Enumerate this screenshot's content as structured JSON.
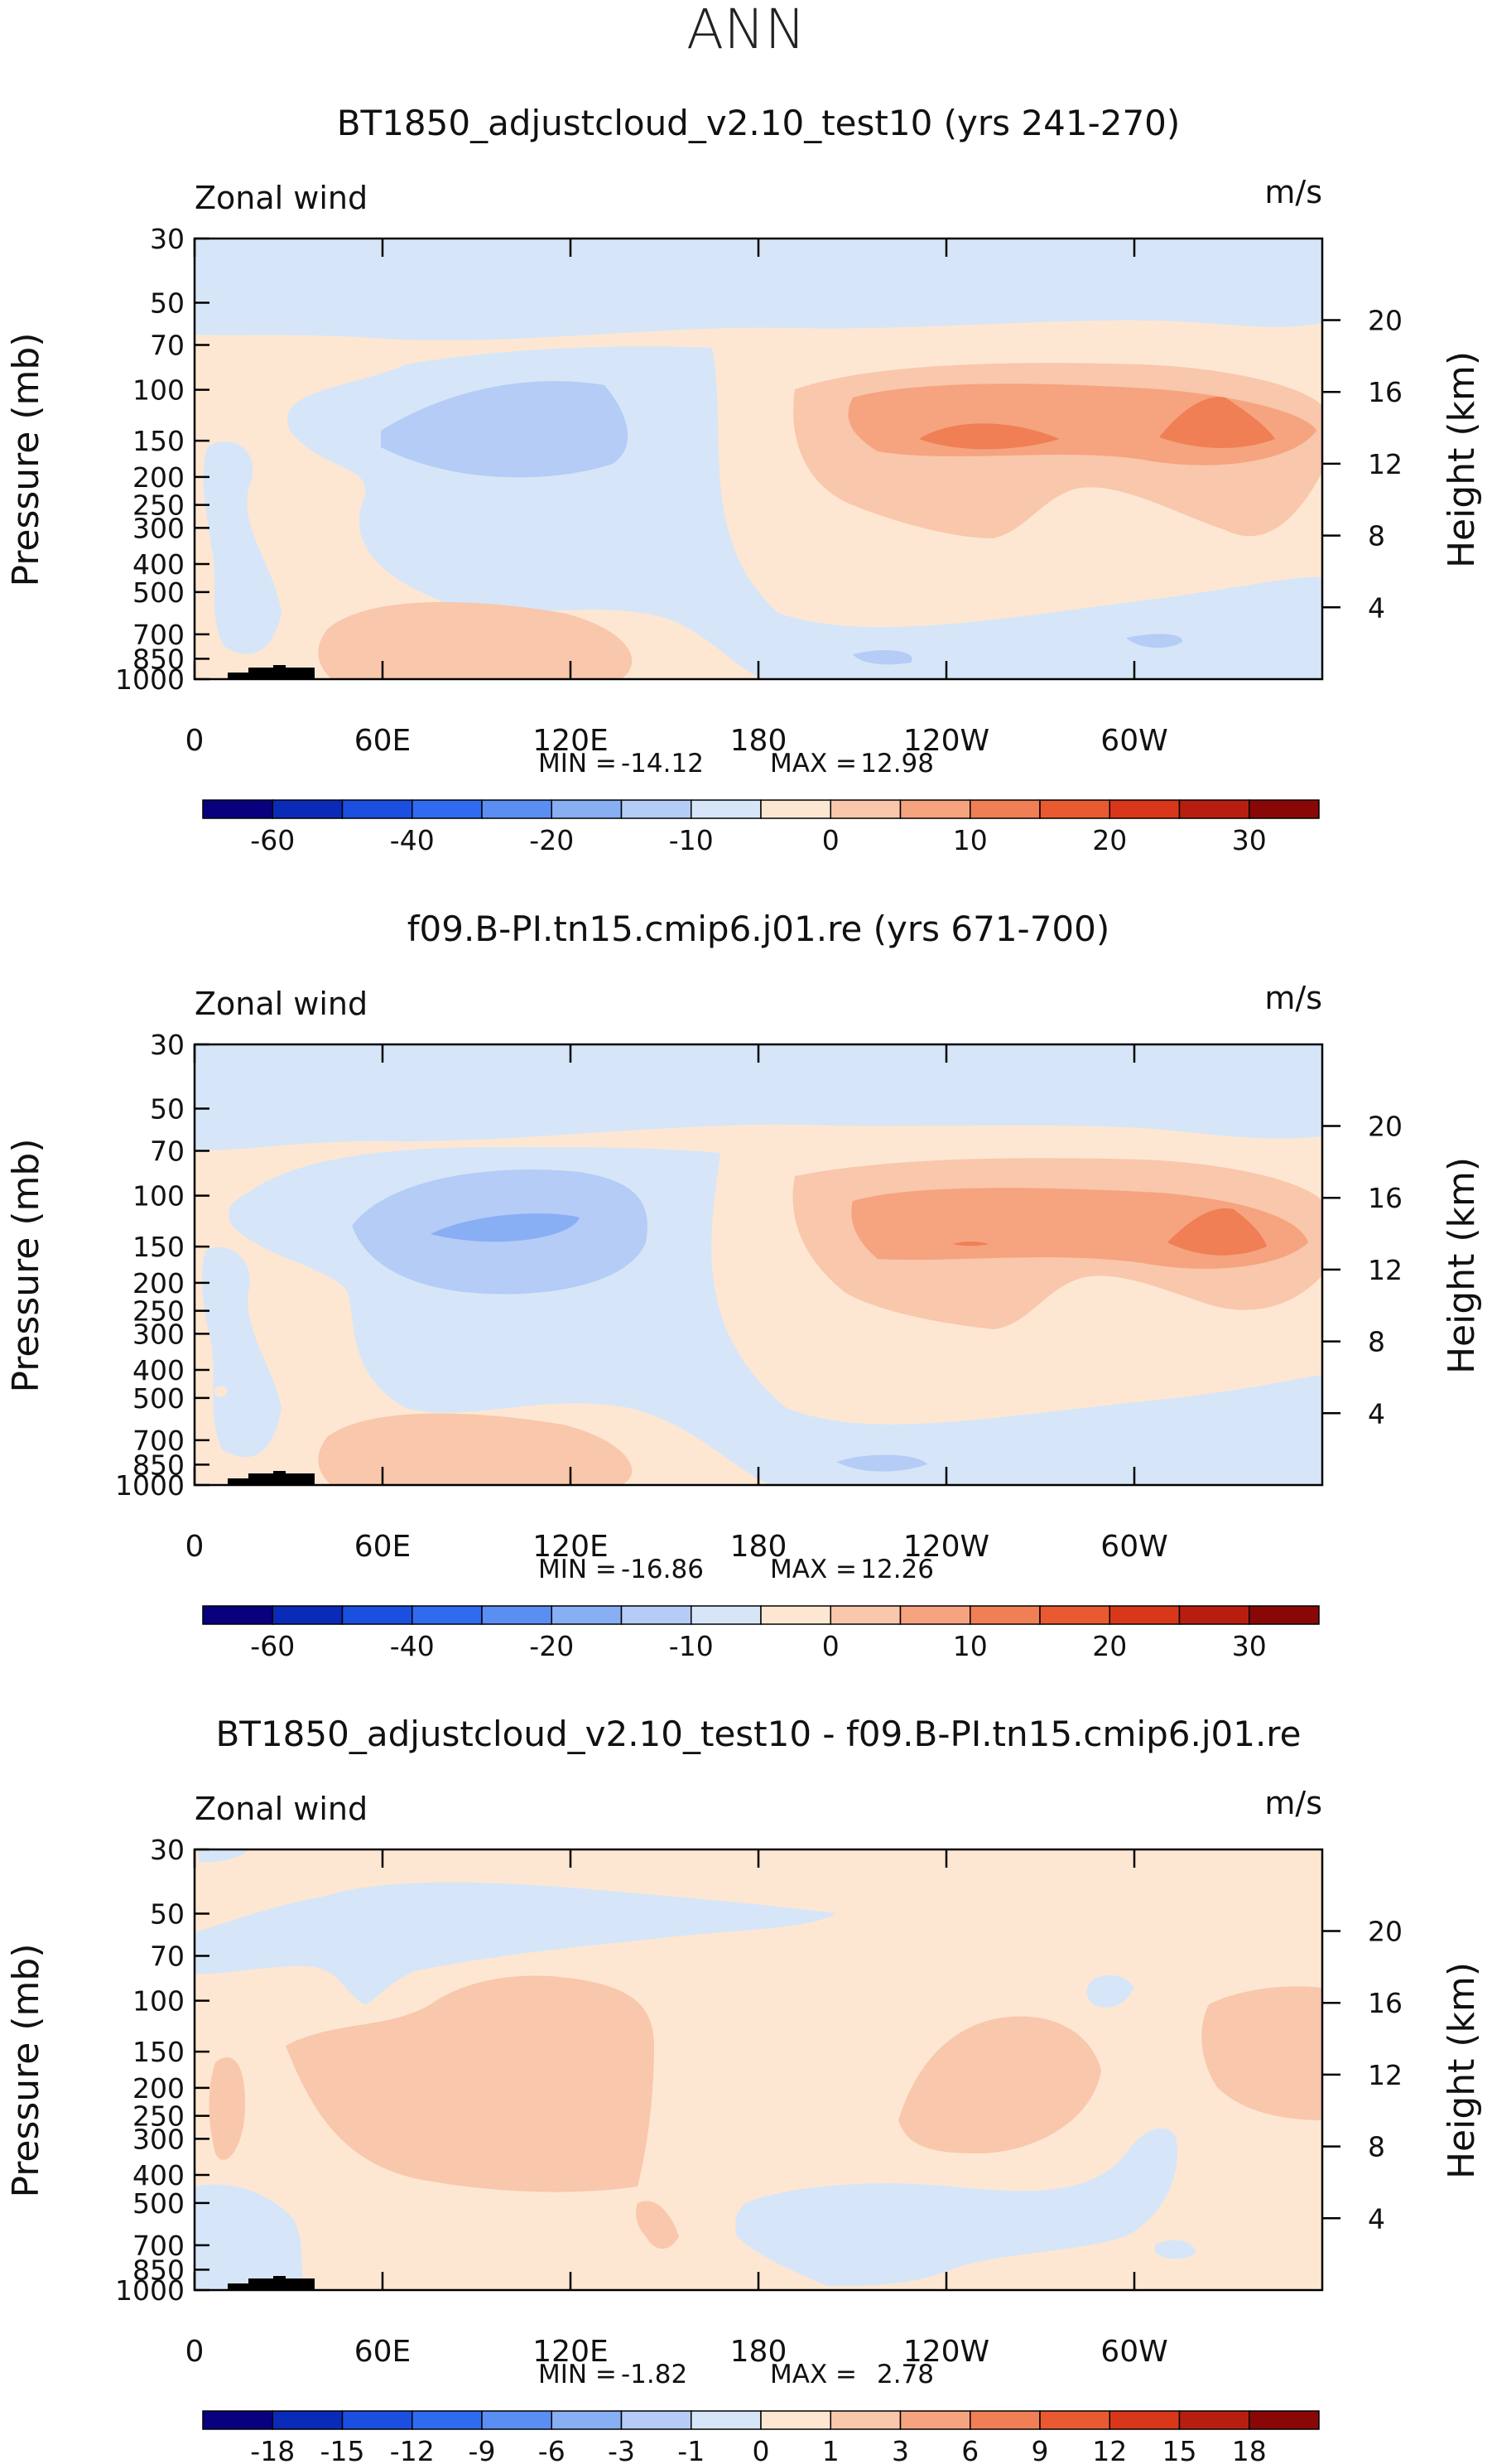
{
  "header": {
    "season": "ANN"
  },
  "chart_data": [
    {
      "type": "contour",
      "title": "BT1850_adjustcloud_v2.10_test10 (yrs 241-270)",
      "variable": "Zonal wind",
      "units": "m/s",
      "xlabel": "",
      "ylabel": "Pressure (mb)",
      "ylabel_right": "Height (km)",
      "x_ticks": [
        "0",
        "60E",
        "120E",
        "180",
        "120W",
        "60W"
      ],
      "y_ticks": [
        "30",
        "50",
        "70",
        "100",
        "150",
        "200",
        "250",
        "300",
        "400",
        "500",
        "700",
        "850",
        "1000"
      ],
      "y2_ticks": [
        "20",
        "16",
        "12",
        "8",
        "4"
      ],
      "stats": {
        "min_label": "MIN =",
        "min": "-14.12",
        "max_label": "MAX =",
        "max": "12.98"
      },
      "colorbar": {
        "labels": [
          "-60",
          "-40",
          "-20",
          "-10",
          "0",
          "10",
          "20",
          "30"
        ],
        "colors": [
          "#08007f",
          "#0a2bb8",
          "#1a4fe0",
          "#2f6bf0",
          "#5a8ef2",
          "#88aef4",
          "#b4ccf6",
          "#d6e6f8",
          "#fde7d3",
          "#f9c7ab",
          "#f5a47f",
          "#f07f55",
          "#e95a30",
          "#d9371a",
          "#b81e10",
          "#8a0707"
        ]
      },
      "features": [
        {
          "kind": "jet_core_negative",
          "sign": "negative",
          "lon_range": "60E-150E",
          "level": "150 mb"
        },
        {
          "kind": "jet_core_positive",
          "sign": "positive",
          "lon_range": "150W-20W",
          "level": "150 mb",
          "peaks": [
            "~130W",
            "~40W"
          ]
        }
      ]
    },
    {
      "type": "contour",
      "title": "f09.B-PI.tn15.cmip6.j01.re (yrs 671-700)",
      "variable": "Zonal wind",
      "units": "m/s",
      "ylabel": "Pressure (mb)",
      "ylabel_right": "Height (km)",
      "x_ticks": [
        "0",
        "60E",
        "120E",
        "180",
        "120W",
        "60W"
      ],
      "y_ticks": [
        "30",
        "50",
        "70",
        "100",
        "150",
        "200",
        "250",
        "300",
        "400",
        "500",
        "700",
        "850",
        "1000"
      ],
      "y2_ticks": [
        "20",
        "16",
        "12",
        "8",
        "4"
      ],
      "stats": {
        "min_label": "MIN =",
        "min": "-16.86",
        "max_label": "MAX =",
        "max": "12.26"
      },
      "colorbar": {
        "labels": [
          "-60",
          "-40",
          "-20",
          "-10",
          "0",
          "10",
          "20",
          "30"
        ],
        "colors": [
          "#08007f",
          "#0a2bb8",
          "#1a4fe0",
          "#2f6bf0",
          "#5a8ef2",
          "#88aef4",
          "#b4ccf6",
          "#d6e6f8",
          "#fde7d3",
          "#f9c7ab",
          "#f5a47f",
          "#f07f55",
          "#e95a30",
          "#d9371a",
          "#b81e10",
          "#8a0707"
        ]
      }
    },
    {
      "type": "contour",
      "title": "BT1850_adjustcloud_v2.10_test10 - f09.B-PI.tn15.cmip6.j01.re",
      "variable": "Zonal wind",
      "units": "m/s",
      "ylabel": "Pressure (mb)",
      "ylabel_right": "Height (km)",
      "x_ticks": [
        "0",
        "60E",
        "120E",
        "180",
        "120W",
        "60W"
      ],
      "y_ticks": [
        "30",
        "50",
        "70",
        "100",
        "150",
        "200",
        "250",
        "300",
        "400",
        "500",
        "700",
        "850",
        "1000"
      ],
      "y2_ticks": [
        "20",
        "16",
        "12",
        "8",
        "4"
      ],
      "stats": {
        "min_label": "MIN =",
        "min": "-1.82",
        "max_label": "MAX =",
        "max": "2.78"
      },
      "colorbar": {
        "labels": [
          "-18",
          "-15",
          "-12",
          "-9",
          "-6",
          "-3",
          "-1",
          "0",
          "1",
          "3",
          "6",
          "9",
          "12",
          "15",
          "18"
        ],
        "colors": [
          "#08007f",
          "#0a2bb8",
          "#1a4fe0",
          "#2f6bf0",
          "#5a8ef2",
          "#88aef4",
          "#b4ccf6",
          "#d6e6f8",
          "#fde7d3",
          "#f9c7ab",
          "#f5a47f",
          "#f07f55",
          "#e95a30",
          "#d9371a",
          "#b81e10",
          "#8a0707"
        ]
      }
    }
  ]
}
